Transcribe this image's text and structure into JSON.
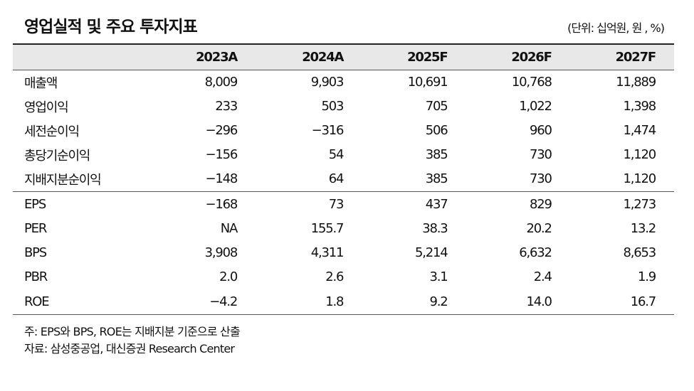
{
  "header": {
    "title": "영업실적 및 주요 투자지표",
    "unit": "(단위: 십억원, 원 , %)"
  },
  "table": {
    "columns": [
      "2023A",
      "2024A",
      "2025F",
      "2026F",
      "2027F"
    ],
    "rows": [
      [
        "매출액",
        "8,009",
        "9,903",
        "10,691",
        "10,768",
        "11,889"
      ],
      [
        "영업이익",
        "233",
        "503",
        "705",
        "1,022",
        "1,398"
      ],
      [
        "세전순이익",
        "−296",
        "−316",
        "506",
        "960",
        "1,474"
      ],
      [
        "총당기순이익",
        "−156",
        "54",
        "385",
        "730",
        "1,120"
      ],
      [
        "지배지분순이익",
        "−148",
        "64",
        "385",
        "730",
        "1,120"
      ],
      [
        "EPS",
        "−168",
        "73",
        "437",
        "829",
        "1,273"
      ],
      [
        "PER",
        "NA",
        "155.7",
        "38.3",
        "20.2",
        "13.2"
      ],
      [
        "BPS",
        "3,908",
        "4,311",
        "5,214",
        "6,632",
        "8,653"
      ],
      [
        "PBR",
        "2.0",
        "2.6",
        "3.1",
        "2.4",
        "1.9"
      ],
      [
        "ROE",
        "−4.2",
        "1.8",
        "9.2",
        "14.0",
        "16.7"
      ]
    ]
  },
  "notes": [
    "주: EPS와 BPS, ROE는 지배지분 기준으로 산출",
    "자료: 삼성중공업, 대신증권 Research Center"
  ]
}
